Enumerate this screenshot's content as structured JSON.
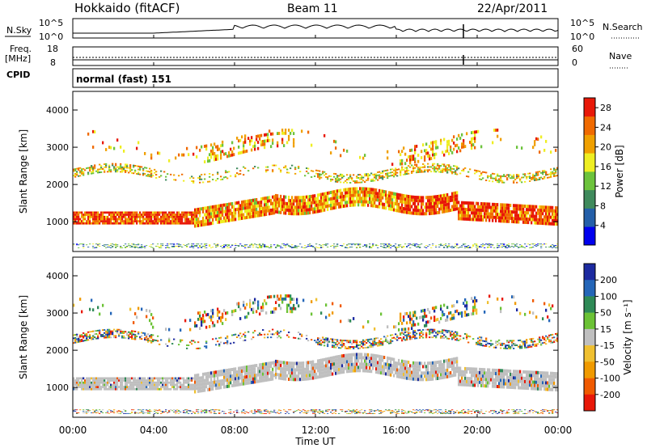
{
  "header": {
    "station": "Hokkaido (fitACF)",
    "beam": "Beam 11",
    "date": "22/Apr/2011"
  },
  "panels": {
    "nsky": {
      "label": "N.Sky",
      "right_label": "N.Search",
      "left_ticks": [
        "10^5",
        "10^0"
      ],
      "right_ticks": [
        "10^5",
        "10^0"
      ]
    },
    "freq": {
      "label": "Freq.",
      "unit": "[MHz]",
      "left_ticks": [
        "18",
        "8"
      ],
      "right_label": "Nave",
      "right_ticks": [
        "60",
        "0"
      ]
    },
    "cpid": {
      "label": "CPID",
      "text": "normal (fast) 151"
    }
  },
  "colors": {
    "power": [
      "#0000ee",
      "#245fa9",
      "#3f8a5c",
      "#6cc33c",
      "#eeee22",
      "#f0a000",
      "#f06a00",
      "#e81808"
    ],
    "velocity": [
      "#1c2aa0",
      "#2466b8",
      "#2e8a56",
      "#6bc235",
      "#bfbfbf",
      "#f0c030",
      "#f09a00",
      "#f05a00",
      "#e81808"
    ]
  },
  "chart_data": [
    {
      "type": "heatmap",
      "title": "",
      "xlabel": "Time UT",
      "ylabel": "Slant Range [km]",
      "x_ticks": [
        "00:00",
        "04:00",
        "08:00",
        "12:00",
        "16:00",
        "20:00",
        "00:00"
      ],
      "xlim_hours": [
        0,
        24
      ],
      "ylim": [
        200,
        4500
      ],
      "y_ticks": [
        1000,
        2000,
        3000,
        4000
      ],
      "colorbar": {
        "label": "Power [dB]",
        "ticks": [
          4,
          8,
          12,
          16,
          20,
          24,
          28
        ],
        "range": [
          0,
          30
        ]
      }
    },
    {
      "type": "heatmap",
      "title": "",
      "xlabel": "Time UT",
      "ylabel": "Slant Range [km]",
      "x_ticks": [
        "00:00",
        "04:00",
        "08:00",
        "12:00",
        "16:00",
        "20:00",
        "00:00"
      ],
      "xlim_hours": [
        0,
        24
      ],
      "ylim": [
        200,
        4500
      ],
      "y_ticks": [
        1000,
        2000,
        3000,
        4000
      ],
      "colorbar": {
        "label": "Velocity [m s⁻¹]",
        "ticks": [
          200,
          100,
          50,
          15,
          -15,
          -50,
          -100,
          -200
        ]
      }
    }
  ]
}
